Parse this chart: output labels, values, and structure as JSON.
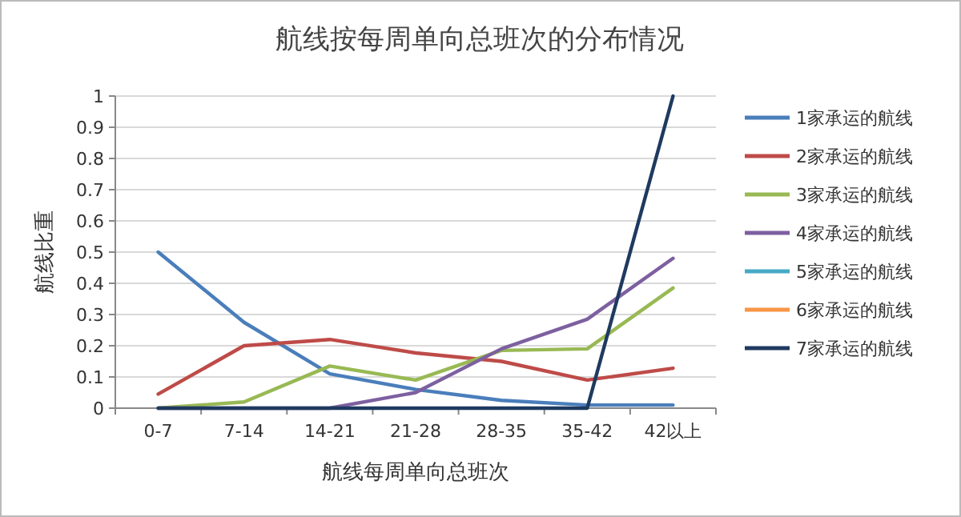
{
  "chart_data": {
    "type": "line",
    "title": "航线按每周单向总班次的分布情况",
    "xlabel": "航线每周单向总班次",
    "ylabel": "航线比重",
    "categories": [
      "0-7",
      "7-14",
      "14-21",
      "21-28",
      "28-35",
      "35-42",
      "42以上"
    ],
    "ylim": [
      0,
      1
    ],
    "yticks": [
      0,
      0.1,
      0.2,
      0.3,
      0.4,
      0.5,
      0.6,
      0.7,
      0.8,
      0.9,
      1
    ],
    "grid": "y",
    "legend": "right",
    "marker": "none",
    "series": [
      {
        "name": "1家承运的航线",
        "color": "#4a7ebb",
        "values": [
          0.5,
          0.275,
          0.11,
          0.06,
          0.025,
          0.01,
          0.01
        ]
      },
      {
        "name": "2家承运的航线",
        "color": "#be4b48",
        "values": [
          0.045,
          0.2,
          0.22,
          0.177,
          0.15,
          0.09,
          0.128
        ]
      },
      {
        "name": "3家承运的航线",
        "color": "#98b954",
        "values": [
          0,
          0.02,
          0.135,
          0.09,
          0.185,
          0.19,
          0.385
        ]
      },
      {
        "name": "4家承运的航线",
        "color": "#7d60a0",
        "values": [
          0,
          0,
          0,
          0.05,
          0.19,
          0.285,
          0.48
        ]
      },
      {
        "name": "5家承运的航线",
        "color": "#46aac5",
        "values": [
          null,
          null,
          null,
          null,
          null,
          null,
          null
        ]
      },
      {
        "name": "6家承运的航线",
        "color": "#f79646",
        "values": [
          null,
          null,
          null,
          null,
          null,
          null,
          null
        ]
      },
      {
        "name": "7家承运的航线",
        "color": "#1f3a60",
        "values": [
          0,
          0,
          0,
          0,
          0,
          0,
          1
        ]
      }
    ]
  }
}
